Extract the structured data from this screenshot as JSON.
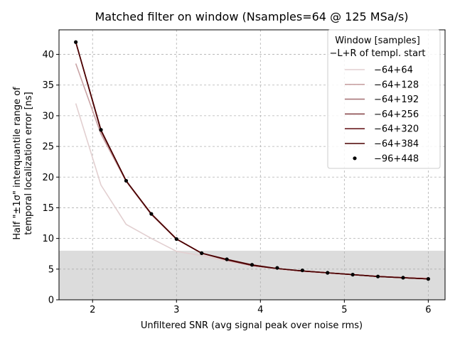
{
  "chart_data": {
    "type": "line",
    "title": "Matched filter on window (Nsamples=64 @ 125 MSa/s)",
    "xlabel": "Unfiltered SNR (avg signal peak over noise rms)",
    "ylabel_line1": "Half \"±1σ\" interquantile range of",
    "ylabel_line2": "temporal localization error [ns]",
    "xlim": [
      1.6,
      6.2
    ],
    "ylim": [
      0,
      44
    ],
    "xticks": [
      2,
      3,
      4,
      5,
      6
    ],
    "yticks": [
      0,
      5,
      10,
      15,
      20,
      25,
      30,
      35,
      40
    ],
    "grid": true,
    "shaded_band": {
      "y0": 0,
      "y1": 8,
      "color": "#dcdcdc"
    },
    "legend": {
      "title_line1": "Window [samples]",
      "title_line2": "−L+R of templ. start",
      "placement": "top-right"
    },
    "x": [
      1.8,
      2.1,
      2.4,
      2.7,
      3.0,
      3.3,
      3.6,
      3.9,
      4.2,
      4.5,
      4.8,
      5.1,
      5.4,
      5.7,
      6.0
    ],
    "series": [
      {
        "name": "−64+64",
        "color": "#e2cfd0",
        "marker": "none",
        "values": [
          32.0,
          18.7,
          12.3,
          10.0,
          7.9,
          7.2,
          6.3,
          5.5,
          5.0,
          4.6,
          4.3,
          4.1,
          3.9,
          3.7,
          3.6
        ]
      },
      {
        "name": "−64+128",
        "color": "#c9a3a5",
        "marker": "none",
        "values": [
          38.5,
          27.0,
          19.3,
          13.9,
          9.9,
          7.6,
          6.5,
          5.6,
          5.1,
          4.7,
          4.4,
          4.1,
          3.8,
          3.6,
          3.4
        ]
      },
      {
        "name": "−64+192",
        "color": "#a8777a",
        "marker": "none",
        "values": [
          42.0,
          27.5,
          19.4,
          14.0,
          9.9,
          7.6,
          6.5,
          5.6,
          5.1,
          4.7,
          4.4,
          4.1,
          3.8,
          3.6,
          3.4
        ]
      },
      {
        "name": "−64+256",
        "color": "#8a4a4e",
        "marker": "none",
        "values": [
          42.0,
          27.6,
          19.4,
          14.0,
          9.9,
          7.6,
          6.5,
          5.6,
          5.1,
          4.7,
          4.4,
          4.1,
          3.8,
          3.6,
          3.4
        ]
      },
      {
        "name": "−64+320",
        "color": "#6b1e22",
        "marker": "none",
        "values": [
          42.0,
          27.6,
          19.4,
          14.0,
          9.9,
          7.6,
          6.5,
          5.6,
          5.1,
          4.7,
          4.4,
          4.1,
          3.8,
          3.6,
          3.4
        ]
      },
      {
        "name": "−64+384",
        "color": "#4a0000",
        "marker": "none",
        "values": [
          42.0,
          27.7,
          19.4,
          14.0,
          9.9,
          7.6,
          6.6,
          5.7,
          5.1,
          4.7,
          4.4,
          4.1,
          3.8,
          3.6,
          3.4
        ]
      },
      {
        "name": "−96+448",
        "color": "#000000",
        "marker": "dot",
        "values": [
          42.0,
          27.7,
          19.4,
          14.0,
          9.9,
          7.6,
          6.6,
          5.7,
          5.2,
          4.8,
          4.4,
          4.1,
          3.8,
          3.6,
          3.4
        ]
      }
    ]
  }
}
